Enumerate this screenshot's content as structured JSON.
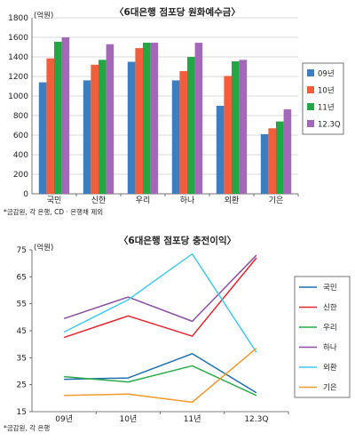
{
  "chart_data": [
    {
      "type": "bar",
      "title": "〈6대은행 점포당 원화예수금〉",
      "unit": "(억원)",
      "categories": [
        "국민",
        "신한",
        "우리",
        "하나",
        "외환",
        "기은"
      ],
      "ylim": [
        0,
        1800
      ],
      "yticks": [
        0,
        200,
        400,
        600,
        800,
        1000,
        1200,
        1400,
        1600,
        1800
      ],
      "series": [
        {
          "name": "09년",
          "color": "#3d7ec0",
          "values": [
            1140,
            1160,
            1350,
            1160,
            900,
            610
          ]
        },
        {
          "name": "10년",
          "color": "#f25d3c",
          "values": [
            1385,
            1320,
            1490,
            1255,
            1205,
            670
          ]
        },
        {
          "name": "11년",
          "color": "#22a744",
          "values": [
            1555,
            1370,
            1545,
            1400,
            1355,
            740
          ]
        },
        {
          "name": "12.3Q",
          "color": "#a468b8",
          "values": [
            1600,
            1530,
            1545,
            1545,
            1370,
            865
          ]
        }
      ],
      "legend_position": "right",
      "note": "*금감원, 각 은행, CD · 은행채 제외"
    },
    {
      "type": "line",
      "title": "〈6대은행 점포당 충전이익〉",
      "unit": "(억원)",
      "categories": [
        "09년",
        "10년",
        "11년",
        "12.3Q"
      ],
      "ylim": [
        15,
        75
      ],
      "yticks": [
        15,
        25,
        35,
        45,
        55,
        65,
        75
      ],
      "series": [
        {
          "name": "국민",
          "color": "#1f6fae",
          "values": [
            27,
            27.5,
            36.5,
            22
          ]
        },
        {
          "name": "신한",
          "color": "#e8242b",
          "values": [
            42.5,
            50.5,
            43,
            72
          ]
        },
        {
          "name": "우리",
          "color": "#2bab4a",
          "values": [
            28,
            26,
            32,
            21
          ]
        },
        {
          "name": "하나",
          "color": "#8b4fa3",
          "values": [
            49.5,
            57.5,
            48.5,
            73
          ]
        },
        {
          "name": "외환",
          "color": "#3fcbef",
          "values": [
            44.5,
            56.5,
            73.5,
            37
          ]
        },
        {
          "name": "기은",
          "color": "#f39a2b",
          "values": [
            21,
            21.5,
            18.5,
            38.5
          ]
        }
      ],
      "legend_position": "right",
      "note": "*금감원, 각 은행"
    }
  ]
}
